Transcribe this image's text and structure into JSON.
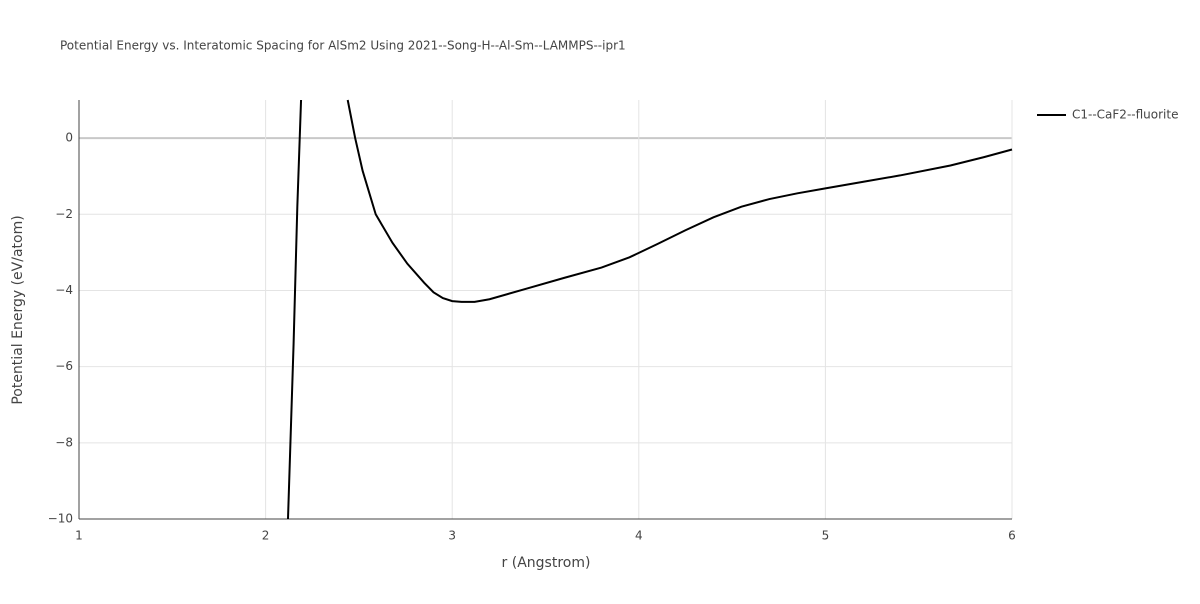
{
  "chart_data": {
    "type": "line",
    "title": "Potential Energy vs. Interatomic Spacing for AlSm2 Using 2021--Song-H--Al-Sm--LAMMPS--ipr1",
    "x_label": "r (Angstrom)",
    "y_label": "Potential Energy (eV/atom)",
    "x": [
      2.12,
      2.15,
      2.17,
      2.19,
      null,
      2.44,
      2.48,
      2.52,
      2.59,
      2.68,
      2.76,
      2.85,
      2.9,
      2.95,
      3.0,
      3.05,
      3.12,
      3.2,
      3.4,
      3.6,
      3.8,
      3.95,
      4.1,
      4.25,
      4.4,
      4.55,
      4.7,
      4.85,
      5.0,
      5.2,
      5.4,
      5.67,
      5.85,
      6.0
    ],
    "series": [
      {
        "name": "C1--CaF2--fluorite",
        "color": "#000000",
        "values": [
          -10,
          -5.4,
          -1.8,
          1,
          null,
          1,
          0,
          -0.86,
          -2.0,
          -2.75,
          -3.3,
          -3.8,
          -4.05,
          -4.2,
          -4.28,
          -4.3,
          -4.3,
          -4.23,
          -3.95,
          -3.67,
          -3.4,
          -3.13,
          -2.78,
          -2.42,
          -2.08,
          -1.8,
          -1.6,
          -1.45,
          -1.32,
          -1.15,
          -0.98,
          -0.72,
          -0.5,
          -0.3
        ]
      }
    ],
    "xlim": [
      1,
      6
    ],
    "xticks": [
      1,
      2,
      3,
      4,
      5,
      6
    ],
    "ylim": [
      -10,
      1
    ],
    "yticks": [
      {
        "value": -10,
        "label": "−10"
      },
      {
        "value": -8,
        "label": "−8"
      },
      {
        "value": -6,
        "label": "−6"
      },
      {
        "value": -4,
        "label": "−4"
      },
      {
        "value": -2,
        "label": "−2"
      },
      0
    ],
    "grid": true,
    "legend": "right"
  }
}
